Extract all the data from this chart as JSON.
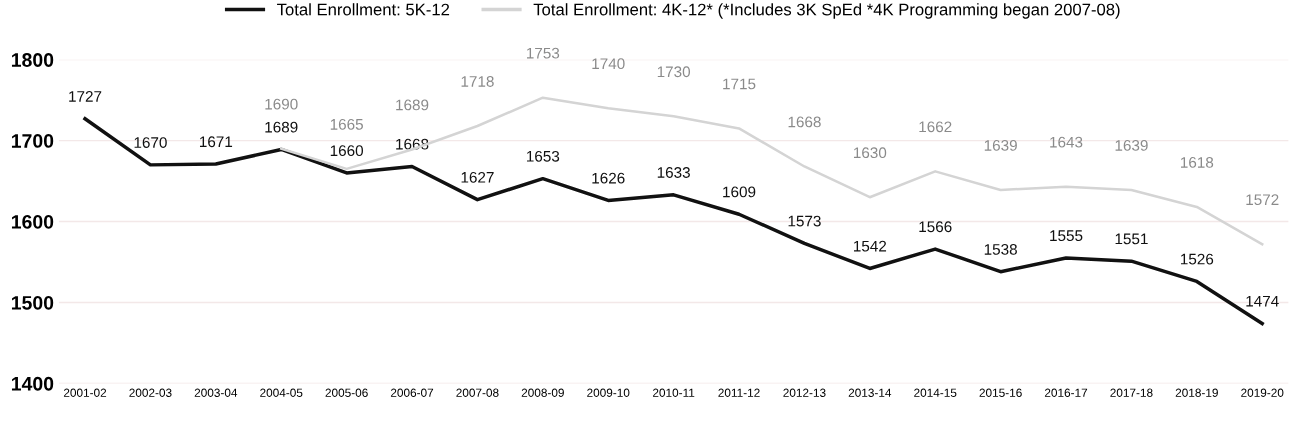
{
  "chart_data": {
    "type": "line",
    "categories": [
      "2001-02",
      "2002-03",
      "2003-04",
      "2004-05",
      "2005-06",
      "2006-07",
      "2007-08",
      "2008-09",
      "2009-10",
      "2010-11",
      "2011-12",
      "2012-13",
      "2013-14",
      "2014-15",
      "2015-16",
      "2016-17",
      "2017-18",
      "2018-19",
      "2019-20"
    ],
    "series": [
      {
        "name": "Total Enrollment: 5K-12",
        "color": "#111111",
        "values": [
          1727,
          1670,
          1671,
          1689,
          1660,
          1668,
          1627,
          1653,
          1626,
          1633,
          1609,
          1573,
          1542,
          1566,
          1538,
          1555,
          1551,
          1526,
          1474
        ]
      },
      {
        "name": "Total Enrollment: 4K-12* (*Includes 3K SpEd *4K Programming began 2007-08)",
        "color": "#d4d4d4",
        "values": [
          null,
          null,
          null,
          1690,
          1665,
          1689,
          1718,
          1753,
          1740,
          1730,
          1715,
          1668,
          1630,
          1662,
          1639,
          1643,
          1639,
          1618,
          1572
        ]
      }
    ],
    "data_labels": true,
    "ylim": [
      1400,
      1800
    ],
    "yticks": [
      1400,
      1500,
      1600,
      1700,
      1800
    ],
    "grid": "y",
    "legend": "top"
  }
}
